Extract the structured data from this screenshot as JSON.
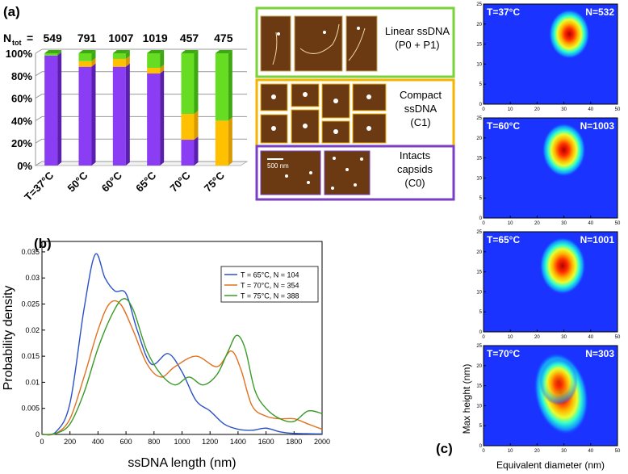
{
  "panel_labels": {
    "a": "(a)",
    "b": "(b)",
    "c": "(c)"
  },
  "ntot_label": "N",
  "ntot_sub": "tot",
  "ntot_eq": "=",
  "scale_bar_label": "500 nm",
  "legend_boxes": [
    {
      "lines": [
        "Linear ssDNA",
        "(P0 + P1)"
      ],
      "color": "#7ad23a"
    },
    {
      "lines": [
        "Compact",
        "ssDNA",
        "(C1)"
      ],
      "color": "#f5b400"
    },
    {
      "lines": [
        "Intacts",
        "capsids",
        "(C0)"
      ],
      "color": "#7a3fc4"
    }
  ],
  "colors": {
    "purple": "#8a3df2",
    "yellow": "#ffc000",
    "green": "#66dd22",
    "blue_line": "#2a52c8",
    "orange_line": "#e07020",
    "green_line": "#3a9a2a"
  },
  "chart_data": [
    {
      "type": "bar",
      "title": "",
      "categories": [
        "T=37°C",
        "50°C",
        "60°C",
        "65°C",
        "70°C",
        "75°C"
      ],
      "n_tot": [
        "549",
        "791",
        "1007",
        "1019",
        "457",
        "475"
      ],
      "series": [
        {
          "name": "Intacts capsids (C0)",
          "values": [
            98,
            88,
            88,
            82,
            23,
            0
          ]
        },
        {
          "name": "Compact ssDNA (C1)",
          "values": [
            0,
            5,
            7,
            5,
            23,
            40
          ]
        },
        {
          "name": "Linear ssDNA (P0 + P1)",
          "values": [
            2,
            7,
            5,
            13,
            54,
            60
          ]
        }
      ],
      "yticks": [
        "0%",
        "20%",
        "40%",
        "60%",
        "80%",
        "100%"
      ],
      "ylim": [
        0,
        100
      ]
    },
    {
      "type": "line",
      "xlabel": "ssDNA length (nm)",
      "ylabel": "Probability density",
      "xlim": [
        0,
        2000
      ],
      "ylim": [
        0,
        0.037
      ],
      "xticks": [
        "0",
        "200",
        "400",
        "600",
        "800",
        "1000",
        "1200",
        "1400",
        "1600",
        "1800",
        "2000"
      ],
      "yticks": [
        "0",
        "0.005",
        "0.01",
        "0.015",
        "0.02",
        "0.025",
        "0.03",
        "0.035"
      ],
      "series": [
        {
          "name": "T = 65°C, N = 104",
          "points": [
            [
              0,
              0
            ],
            [
              100,
              0.0005
            ],
            [
              200,
              0.006
            ],
            [
              300,
              0.024
            ],
            [
              380,
              0.0345
            ],
            [
              450,
              0.03
            ],
            [
              520,
              0.0275
            ],
            [
              600,
              0.027
            ],
            [
              680,
              0.02
            ],
            [
              780,
              0.0135
            ],
            [
              900,
              0.0155
            ],
            [
              1000,
              0.012
            ],
            [
              1100,
              0.0065
            ],
            [
              1200,
              0.0045
            ],
            [
              1300,
              0.002
            ],
            [
              1400,
              0.001
            ],
            [
              1500,
              0.0008
            ],
            [
              1600,
              0.0012
            ],
            [
              1700,
              0.0005
            ],
            [
              1800,
              0.0002
            ],
            [
              2000,
              0.0001
            ]
          ]
        },
        {
          "name": "T = 70°C, N = 354",
          "points": [
            [
              0,
              0
            ],
            [
              100,
              0.0002
            ],
            [
              200,
              0.003
            ],
            [
              300,
              0.011
            ],
            [
              400,
              0.02
            ],
            [
              480,
              0.025
            ],
            [
              560,
              0.025
            ],
            [
              650,
              0.02
            ],
            [
              750,
              0.0135
            ],
            [
              850,
              0.011
            ],
            [
              950,
              0.013
            ],
            [
              1100,
              0.015
            ],
            [
              1250,
              0.013
            ],
            [
              1350,
              0.016
            ],
            [
              1420,
              0.0125
            ],
            [
              1500,
              0.0055
            ],
            [
              1600,
              0.0035
            ],
            [
              1700,
              0.003
            ],
            [
              1800,
              0.003
            ],
            [
              1900,
              0.002
            ],
            [
              2000,
              0.001
            ]
          ]
        },
        {
          "name": "T = 75°C, N = 388",
          "points": [
            [
              0,
              0
            ],
            [
              100,
              0.0002
            ],
            [
              200,
              0.002
            ],
            [
              300,
              0.008
            ],
            [
              400,
              0.0165
            ],
            [
              500,
              0.023
            ],
            [
              580,
              0.026
            ],
            [
              650,
              0.024
            ],
            [
              750,
              0.016
            ],
            [
              850,
              0.0115
            ],
            [
              950,
              0.0095
            ],
            [
              1050,
              0.011
            ],
            [
              1150,
              0.0095
            ],
            [
              1250,
              0.0115
            ],
            [
              1330,
              0.016
            ],
            [
              1390,
              0.019
            ],
            [
              1450,
              0.0165
            ],
            [
              1520,
              0.0085
            ],
            [
              1600,
              0.005
            ],
            [
              1700,
              0.003
            ],
            [
              1800,
              0.0025
            ],
            [
              1900,
              0.0045
            ],
            [
              2000,
              0.004
            ]
          ]
        }
      ]
    },
    {
      "type": "heatmap",
      "xlabel": "Equivalent diameter (nm)",
      "ylabel": "Max height (nm)",
      "xlim": [
        0,
        50
      ],
      "ylim": [
        0,
        25
      ],
      "xticks": [
        "0",
        "10",
        "20",
        "30",
        "40",
        "50"
      ],
      "yticks": [
        "0",
        "5",
        "10",
        "15",
        "20",
        "25"
      ],
      "panels": [
        {
          "temp": "T=37°C",
          "n": "N=532",
          "peak_x": 32,
          "peak_y": 17.5,
          "spread_x": 3.2,
          "spread_y": 2.6
        },
        {
          "temp": "T=60°C",
          "n": "N=1003",
          "peak_x": 30,
          "peak_y": 17,
          "spread_x": 3.4,
          "spread_y": 2.8
        },
        {
          "temp": "T=65°C",
          "n": "N=1001",
          "peak_x": 29.5,
          "peak_y": 16.5,
          "spread_x": 3.6,
          "spread_y": 3.0
        },
        {
          "temp": "T=70°C",
          "n": "N=303",
          "peak_x": 29,
          "peak_y": 13,
          "spread_x": 4.5,
          "spread_y": 6.5
        }
      ]
    }
  ]
}
